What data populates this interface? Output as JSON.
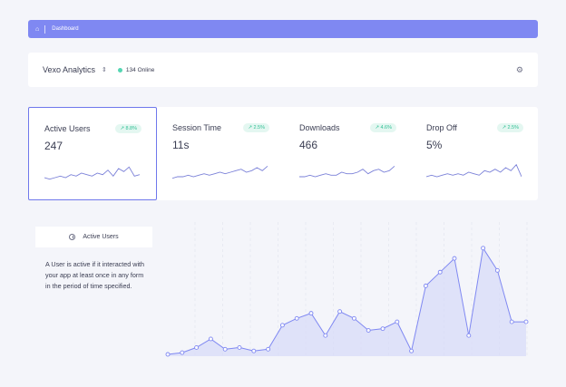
{
  "breadcrumb": {
    "home_icon": "home-icon",
    "label": "Dashboard"
  },
  "toolbar": {
    "app_name": "Vexo Analytics",
    "online_count": "134 Online",
    "online_color": "#54d6b2",
    "settings_icon": "sliders-icon"
  },
  "metrics": [
    {
      "title": "Active Users",
      "value": "247",
      "badge": "↗ 8.8%",
      "spark": [
        3,
        2,
        3,
        4,
        3,
        5,
        4,
        6,
        5,
        4,
        6,
        5,
        8,
        4,
        9,
        7,
        10,
        4,
        5
      ]
    },
    {
      "title": "Session Time",
      "value": "11s",
      "badge": "↗ 2.5%",
      "spark": [
        2,
        3,
        3,
        4,
        3,
        4,
        5,
        4,
        5,
        6,
        5,
        6,
        7,
        8,
        6,
        7,
        9,
        7,
        10
      ]
    },
    {
      "title": "Downloads",
      "value": "466",
      "badge": "↗ 4.6%",
      "spark": [
        3,
        3,
        4,
        3,
        4,
        5,
        4,
        4,
        6,
        5,
        5,
        6,
        8,
        5,
        7,
        8,
        6,
        7,
        10
      ]
    },
    {
      "title": "Drop Off",
      "value": "5%",
      "badge": "↗ 2.5%",
      "spark": [
        3,
        4,
        3,
        4,
        5,
        4,
        5,
        4,
        6,
        5,
        4,
        7,
        6,
        8,
        6,
        9,
        7,
        11,
        3
      ]
    }
  ],
  "panel": {
    "tab_label": "Active Users",
    "description": "A User is active if it interacted with your app at least once in any form in the period of time specified."
  },
  "chart_data": {
    "type": "area",
    "values": [
      0,
      1,
      4,
      9,
      3,
      4,
      2,
      3,
      17,
      21,
      24,
      11,
      25,
      21,
      14,
      15,
      19,
      2,
      40,
      48,
      56,
      11,
      62,
      49,
      19,
      19
    ],
    "x_labels": [
      "",
      "",
      "",
      "",
      "",
      "",
      "",
      "",
      "",
      "",
      "",
      "",
      "",
      "",
      ""
    ],
    "grid": "vertical-dashed",
    "line_color": "#7f88f2",
    "fill_color": "#d8dbf8"
  }
}
